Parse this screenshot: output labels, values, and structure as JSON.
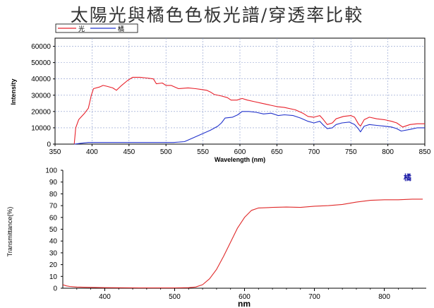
{
  "title": "太陽光與橘色色板光譜/穿透率比較",
  "colors": {
    "sun": "#e8202a",
    "orange": "#2233cc",
    "transmit": "#e02a2a",
    "grid": "#8899cc"
  },
  "chart_data": [
    {
      "type": "line",
      "xlabel": "Wavelength (nm)",
      "ylabel": "Intensity",
      "xlim": [
        350,
        850
      ],
      "ylim": [
        0,
        65000
      ],
      "x_ticks": [
        "350",
        "400",
        "450",
        "500",
        "550",
        "600",
        "650",
        "700",
        "750",
        "800",
        "850"
      ],
      "y_ticks": [
        "0",
        "10000",
        "20000",
        "30000",
        "40000",
        "50000",
        "60000"
      ],
      "grid": true,
      "legend": "top-left",
      "series": [
        {
          "name": "光",
          "color": "#e8202a",
          "points": [
            [
              376,
              0
            ],
            [
              378,
              10000
            ],
            [
              382,
              15000
            ],
            [
              386,
              17000
            ],
            [
              390,
              19000
            ],
            [
              395,
              22000
            ],
            [
              399,
              30000
            ],
            [
              402,
              34000
            ],
            [
              410,
              35000
            ],
            [
              415,
              36000
            ],
            [
              420,
              35500
            ],
            [
              428,
              34500
            ],
            [
              433,
              33000
            ],
            [
              440,
              36000
            ],
            [
              448,
              39000
            ],
            [
              455,
              41000
            ],
            [
              465,
              41000
            ],
            [
              475,
              40500
            ],
            [
              483,
              40000
            ],
            [
              487,
              37000
            ],
            [
              495,
              37500
            ],
            [
              500,
              36000
            ],
            [
              507,
              36000
            ],
            [
              512,
              35000
            ],
            [
              517,
              34000
            ],
            [
              530,
              34500
            ],
            [
              540,
              34000
            ],
            [
              548,
              33500
            ],
            [
              555,
              33000
            ],
            [
              560,
              32000
            ],
            [
              565,
              30500
            ],
            [
              575,
              29500
            ],
            [
              583,
              28500
            ],
            [
              588,
              27000
            ],
            [
              596,
              27000
            ],
            [
              603,
              28000
            ],
            [
              610,
              27000
            ],
            [
              620,
              26000
            ],
            [
              630,
              25000
            ],
            [
              640,
              24000
            ],
            [
              650,
              23000
            ],
            [
              660,
              22500
            ],
            [
              675,
              21000
            ],
            [
              685,
              19000
            ],
            [
              692,
              17000
            ],
            [
              700,
              16500
            ],
            [
              708,
              17500
            ],
            [
              712,
              15500
            ],
            [
              718,
              12000
            ],
            [
              725,
              13000
            ],
            [
              730,
              15500
            ],
            [
              740,
              17000
            ],
            [
              750,
              17500
            ],
            [
              755,
              16500
            ],
            [
              760,
              12500
            ],
            [
              763,
              11000
            ],
            [
              768,
              15000
            ],
            [
              775,
              16500
            ],
            [
              785,
              15500
            ],
            [
              795,
              15000
            ],
            [
              805,
              14000
            ],
            [
              812,
              13000
            ],
            [
              820,
              10500
            ],
            [
              830,
              12000
            ],
            [
              840,
              12500
            ],
            [
              850,
              12500
            ]
          ]
        },
        {
          "name": "橘",
          "color": "#2233cc",
          "points": [
            [
              376,
              0
            ],
            [
              385,
              500
            ],
            [
              395,
              1000
            ],
            [
              420,
              1000
            ],
            [
              450,
              1000
            ],
            [
              490,
              1000
            ],
            [
              510,
              1000
            ],
            [
              525,
              1500
            ],
            [
              530,
              2500
            ],
            [
              540,
              4500
            ],
            [
              550,
              6500
            ],
            [
              560,
              8500
            ],
            [
              570,
              11000
            ],
            [
              575,
              13000
            ],
            [
              580,
              16000
            ],
            [
              590,
              16500
            ],
            [
              597,
              18000
            ],
            [
              603,
              20000
            ],
            [
              612,
              20000
            ],
            [
              622,
              19500
            ],
            [
              632,
              18500
            ],
            [
              642,
              19000
            ],
            [
              652,
              17500
            ],
            [
              660,
              18000
            ],
            [
              672,
              17500
            ],
            [
              682,
              16000
            ],
            [
              692,
              14000
            ],
            [
              700,
              13000
            ],
            [
              708,
              14000
            ],
            [
              712,
              12000
            ],
            [
              718,
              9500
            ],
            [
              725,
              10000
            ],
            [
              730,
              12000
            ],
            [
              738,
              13000
            ],
            [
              748,
              13500
            ],
            [
              755,
              12000
            ],
            [
              760,
              9500
            ],
            [
              763,
              7500
            ],
            [
              768,
              11000
            ],
            [
              775,
              12000
            ],
            [
              785,
              11500
            ],
            [
              795,
              11000
            ],
            [
              805,
              10500
            ],
            [
              812,
              9500
            ],
            [
              818,
              8000
            ],
            [
              830,
              9000
            ],
            [
              840,
              10000
            ],
            [
              850,
              10000
            ]
          ]
        }
      ]
    },
    {
      "type": "line",
      "xlabel": "nm",
      "ylabel": "Transmittance(%)",
      "xlim": [
        340,
        860
      ],
      "ylim": [
        0,
        100
      ],
      "x_ticks": [
        "400",
        "500",
        "600",
        "700",
        "800"
      ],
      "y_ticks": [
        "0",
        "10",
        "20",
        "30",
        "40",
        "50",
        "60",
        "70",
        "80",
        "90",
        "100"
      ],
      "grid": false,
      "annotation": "橘",
      "series": [
        {
          "name": "橘",
          "color": "#e02a2a",
          "points": [
            [
              340,
              3
            ],
            [
              345,
              2
            ],
            [
              350,
              1.5
            ],
            [
              360,
              1
            ],
            [
              380,
              0.7
            ],
            [
              400,
              0.5
            ],
            [
              450,
              0.3
            ],
            [
              500,
              0.3
            ],
            [
              520,
              0.5
            ],
            [
              530,
              1
            ],
            [
              540,
              3
            ],
            [
              550,
              8
            ],
            [
              560,
              16
            ],
            [
              570,
              27
            ],
            [
              580,
              39
            ],
            [
              590,
              51
            ],
            [
              600,
              60
            ],
            [
              610,
              66
            ],
            [
              620,
              68
            ],
            [
              640,
              68.5
            ],
            [
              660,
              68.8
            ],
            [
              680,
              68.5
            ],
            [
              700,
              69.5
            ],
            [
              720,
              70
            ],
            [
              740,
              71
            ],
            [
              760,
              73
            ],
            [
              780,
              74.5
            ],
            [
              800,
              75
            ],
            [
              820,
              75
            ],
            [
              840,
              75.5
            ],
            [
              855,
              75.5
            ]
          ]
        }
      ]
    }
  ]
}
